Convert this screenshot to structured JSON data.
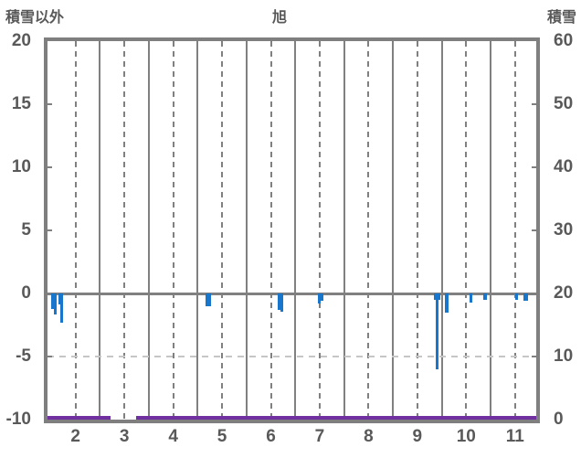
{
  "header": {
    "left_axis_title": "積雪以外",
    "chart_title": "旭",
    "right_axis_title": "積雪"
  },
  "chart_data": {
    "type": "bar+line",
    "title": "旭",
    "left_axis": {
      "title": "積雪以外",
      "min": -10,
      "max": 20,
      "tick_values": [
        20,
        15,
        10,
        5,
        0,
        -5,
        -10
      ],
      "tick_labels": [
        "20",
        "15",
        "10",
        "5",
        "0",
        "-5",
        "-10"
      ]
    },
    "right_axis": {
      "title": "積雪",
      "min": 0,
      "max": 60,
      "tick_values": [
        60,
        50,
        40,
        30,
        20,
        10,
        0
      ],
      "tick_labels": [
        "60",
        "50",
        "40",
        "30",
        "20",
        "10",
        "0"
      ]
    },
    "x_axis": {
      "months": [
        2,
        3,
        4,
        5,
        6,
        7,
        8,
        9,
        10,
        11
      ],
      "tick_labels": [
        "2",
        "3",
        "4",
        "5",
        "6",
        "7",
        "8",
        "9",
        "10",
        "11"
      ],
      "start_month": 1.925,
      "end_month": 11.935,
      "grid_solid_at_month_boundaries": [
        3,
        4,
        5,
        6,
        7,
        8,
        9,
        10,
        11
      ],
      "grid_dashed_at_month_centers": [
        2.5,
        3.5,
        4.5,
        5.5,
        6.5,
        7.5,
        8.5,
        9.5,
        10.5,
        11.5
      ]
    },
    "horizontal_guides": {
      "zero_line_value": 0,
      "dashed_line_value": -5
    },
    "bars": {
      "series_name": "積雪以外",
      "color": "#1877CC",
      "axis": "left",
      "points": [
        {
          "month": 2.03,
          "value": -1.2,
          "width_days": 1.7
        },
        {
          "month": 2.08,
          "value": -1.7,
          "width_days": 1.7
        },
        {
          "month": 2.17,
          "value": -0.9,
          "width_days": 1.4
        },
        {
          "month": 2.22,
          "value": -2.3,
          "width_days": 1.7
        },
        {
          "month": 5.22,
          "value": -1.0,
          "width_days": 3.5
        },
        {
          "month": 6.66,
          "value": -1.3,
          "width_days": 1.7
        },
        {
          "month": 6.72,
          "value": -1.45,
          "width_days": 1.7
        },
        {
          "month": 7.5,
          "value": -0.8,
          "width_days": 1.7
        },
        {
          "month": 7.55,
          "value": -0.55,
          "width_days": 1.7
        },
        {
          "month": 9.86,
          "value": -0.5,
          "width_days": 1.0
        },
        {
          "month": 9.91,
          "value": -6.0,
          "width_days": 1.7
        },
        {
          "month": 9.96,
          "value": -0.5,
          "width_days": 1.0
        },
        {
          "month": 10.1,
          "value": -1.5,
          "width_days": 2.3
        },
        {
          "month": 10.6,
          "value": -0.7,
          "width_days": 1.7
        },
        {
          "month": 10.88,
          "value": -0.5,
          "width_days": 2.3
        },
        {
          "month": 11.53,
          "value": -0.5,
          "width_days": 1.7
        },
        {
          "month": 11.69,
          "value": -0.55,
          "width_days": 1.4
        },
        {
          "month": 11.74,
          "value": -0.6,
          "width_days": 1.4
        }
      ]
    },
    "line": {
      "series_name": "積雪",
      "color": "#7030A0",
      "axis": "right",
      "constant_value": 0,
      "segments_months": [
        [
          1.925,
          3.217
        ],
        [
          3.741,
          11.935
        ]
      ]
    },
    "colors": {
      "axis_border": "#7f7f7f",
      "grid": "#808080",
      "light_dashed_grid": "#c6c6c6",
      "text": "#595959",
      "bar": "#1877CC",
      "snow_line": "#7030A0",
      "background": "#ffffff"
    }
  }
}
